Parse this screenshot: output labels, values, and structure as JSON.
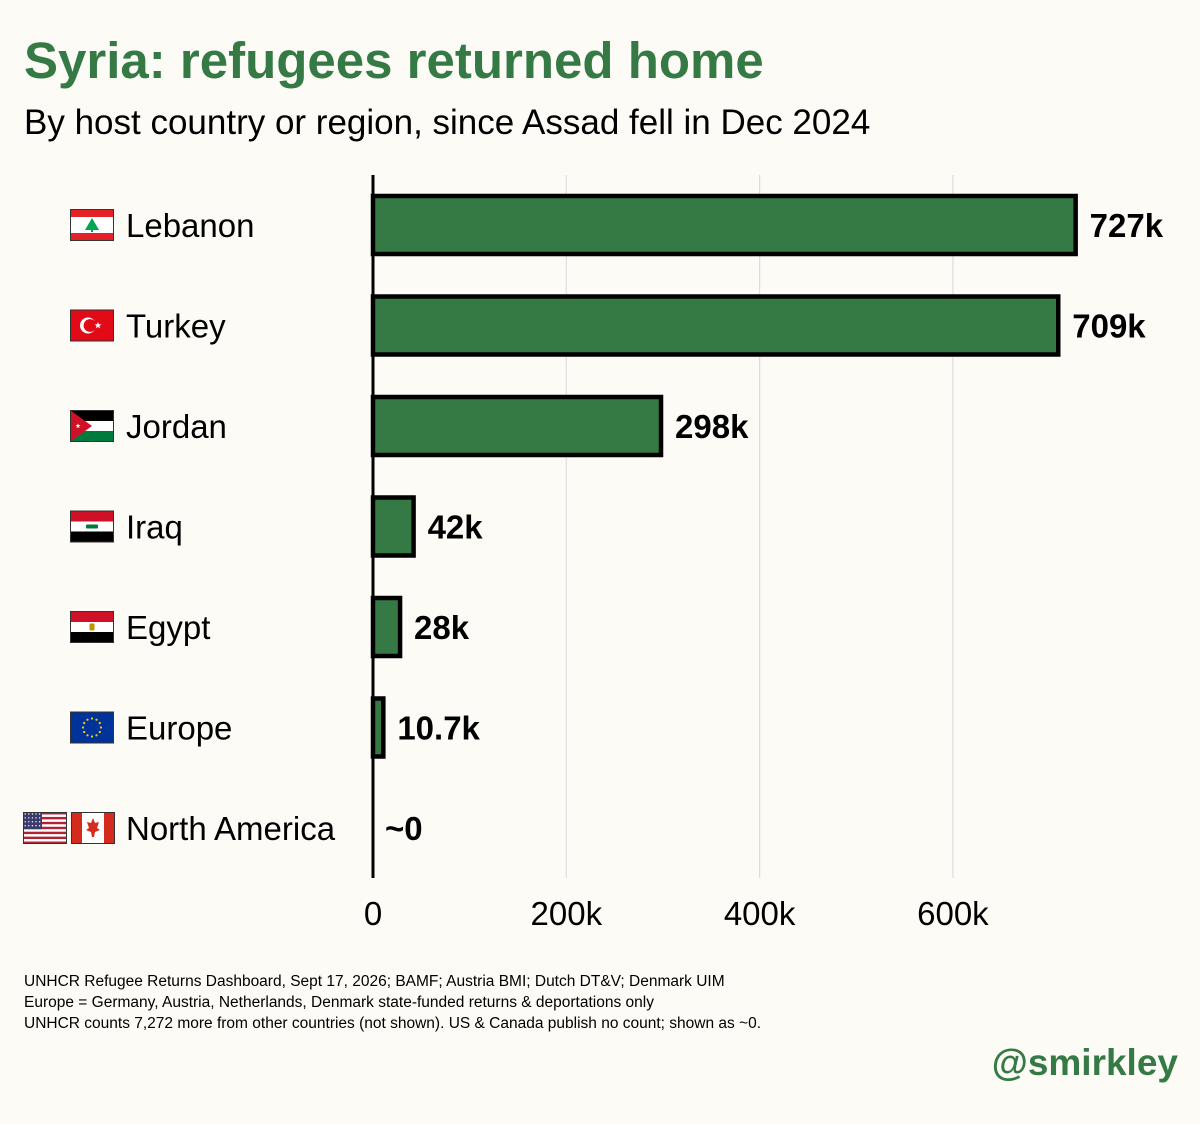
{
  "colors": {
    "background": "#fcfbf6",
    "accent": "#357a45",
    "bar_fill": "#357a45",
    "bar_stroke": "#000000",
    "gridline": "#dddddd",
    "text": "#000000"
  },
  "header": {
    "title": "Syria: refugees returned home",
    "subtitle": "By host country or region, since Assad fell in Dec 2024"
  },
  "chart_data": {
    "type": "bar",
    "orientation": "horizontal",
    "title": "Syria: refugees returned home",
    "subtitle": "By host country or region, since Assad fell in Dec 2024",
    "categories": [
      "Lebanon",
      "Turkey",
      "Jordan",
      "Iraq",
      "Egypt",
      "Europe",
      "North America"
    ],
    "values": [
      727000,
      709000,
      298000,
      42000,
      28000,
      10700,
      0
    ],
    "value_labels": [
      "727k",
      "709k",
      "298k",
      "42k",
      "28k",
      "10.7k",
      "~0"
    ],
    "flags": [
      [
        "lebanon-flag"
      ],
      [
        "turkey-flag"
      ],
      [
        "jordan-flag"
      ],
      [
        "iraq-flag"
      ],
      [
        "egypt-flag"
      ],
      [
        "eu-flag"
      ],
      [
        "us-flag",
        "canada-flag"
      ]
    ],
    "x_ticks": [
      0,
      200000,
      400000,
      600000
    ],
    "x_tick_labels": [
      "0",
      "200k",
      "400k",
      "600k"
    ],
    "xlim": [
      0,
      800000
    ],
    "xlabel": "",
    "ylabel": "",
    "grid": "vertical",
    "legend": "none"
  },
  "footnotes": [
    "UNHCR Refugee Returns Dashboard, Sept 17, 2026; BAMF; Austria BMI; Dutch DT&V; Denmark UIM",
    "Europe = Germany, Austria, Netherlands, Denmark state-funded returns & deportations only",
    "UNHCR counts 7,272 more from other countries (not shown). US & Canada publish no count; shown as ~0."
  ],
  "credit": "@smirkley"
}
